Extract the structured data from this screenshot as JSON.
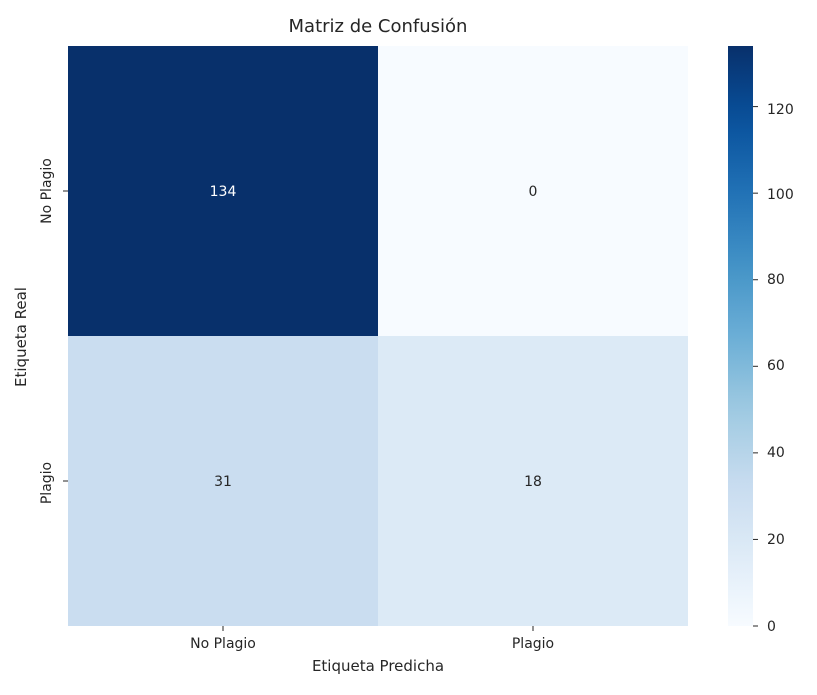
{
  "chart_data": {
    "type": "heatmap",
    "title": "Matriz de Confusión",
    "xlabel": "Etiqueta Predicha",
    "ylabel": "Etiqueta Real",
    "x_categories": [
      "No Plagio",
      "Plagio"
    ],
    "y_categories": [
      "No Plagio",
      "Plagio"
    ],
    "values": [
      [
        134,
        0
      ],
      [
        31,
        18
      ]
    ],
    "colormap": "Blues",
    "colorbar": {
      "min": 0,
      "max": 134,
      "ticks": [
        0,
        20,
        40,
        60,
        80,
        100,
        120
      ]
    },
    "grid": false
  }
}
